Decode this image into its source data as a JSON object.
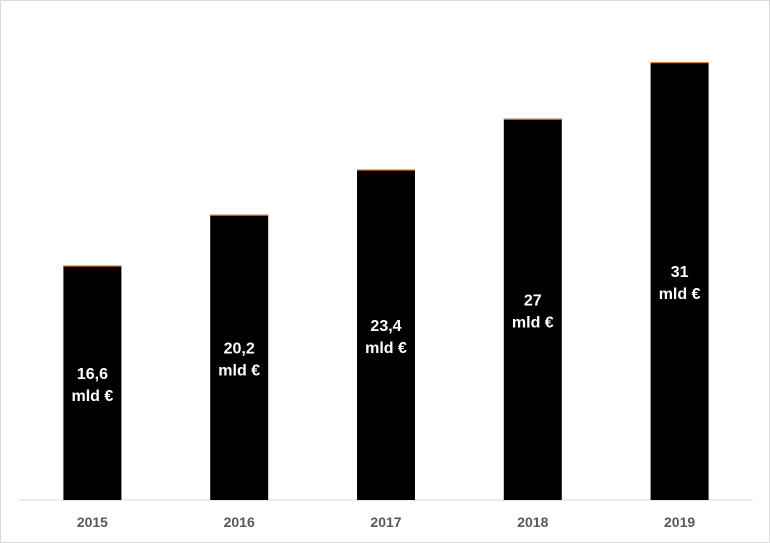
{
  "chart_data": {
    "type": "bar",
    "title": "",
    "xlabel": "",
    "ylabel": "",
    "categories": [
      "2015",
      "2016",
      "2017",
      "2018",
      "2019"
    ],
    "values": [
      16.6,
      20.2,
      23.4,
      27,
      31
    ],
    "value_labels": [
      {
        "value": "16,6",
        "unit": "mld €"
      },
      {
        "value": "20,2",
        "unit": "mld €"
      },
      {
        "value": "23,4",
        "unit": "mld €"
      },
      {
        "value": "27",
        "unit": "mld €"
      },
      {
        "value": "31",
        "unit": "mld €"
      }
    ],
    "ylim": [
      0,
      33
    ],
    "grid": false,
    "legend": "none",
    "colors": {
      "bar": "#000000",
      "bar_top_edge": "#ed7d31",
      "axis_line": "#d9d9d9",
      "tick_label": "#595959",
      "value_label": "#ffffff"
    }
  }
}
